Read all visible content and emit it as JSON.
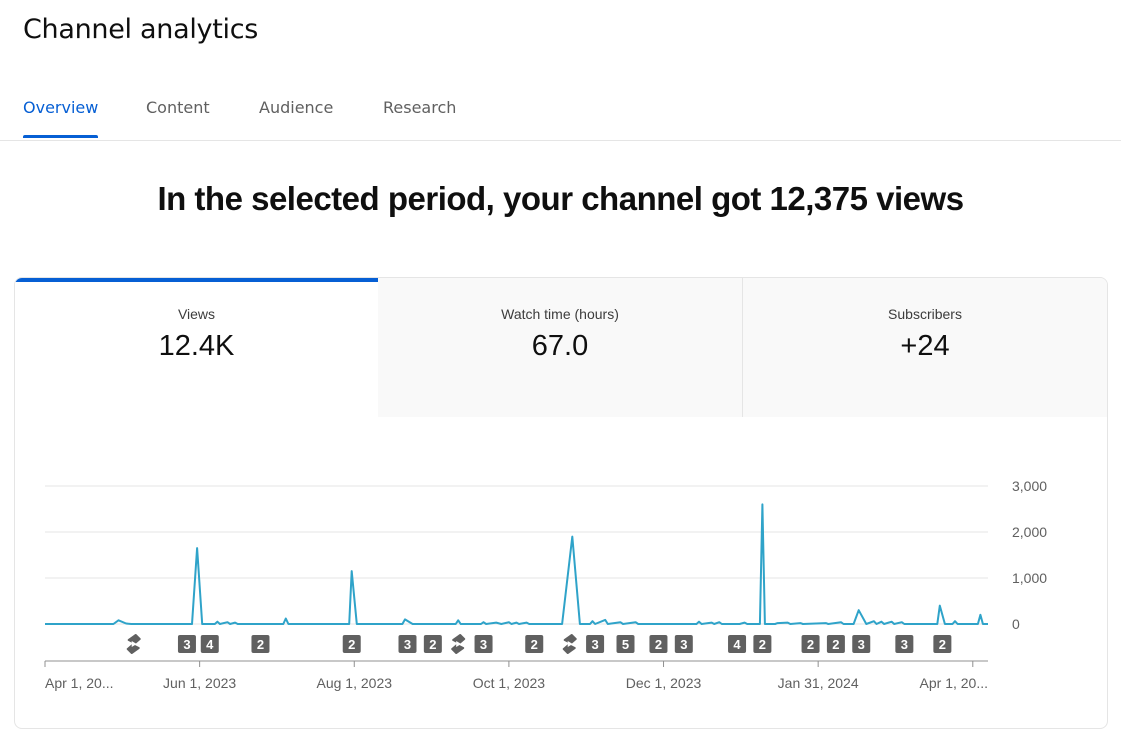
{
  "page": {
    "title": "Channel analytics"
  },
  "tabs": [
    {
      "label": "Overview",
      "active": true
    },
    {
      "label": "Content",
      "active": false
    },
    {
      "label": "Audience",
      "active": false
    },
    {
      "label": "Research",
      "active": false
    }
  ],
  "headline": "In the selected period, your channel got 12,375 views",
  "metrics": [
    {
      "label": "Views",
      "value": "12.4K",
      "active": true
    },
    {
      "label": "Watch time (hours)",
      "value": "67.0",
      "active": false
    },
    {
      "label": "Subscribers",
      "value": "+24",
      "active": false
    }
  ],
  "colors": {
    "accent": "#065fd4",
    "line": "#2fa3c9",
    "marker": "#606060",
    "grid": "#e5e5e5"
  },
  "chart_data": {
    "type": "line",
    "title": "",
    "xlabel": "",
    "ylabel": "",
    "y_ticks": [
      "3,000",
      "2,000",
      "1,000",
      "0"
    ],
    "y_tick_values": [
      3000,
      2000,
      1000,
      0
    ],
    "ylim": [
      0,
      3000
    ],
    "x_range": [
      "2023-04-01",
      "2024-04-07"
    ],
    "x_ticks": [
      {
        "date": "2023-04-01",
        "label": "Apr 1, 20..."
      },
      {
        "date": "2023-06-01",
        "label": "Jun 1, 2023"
      },
      {
        "date": "2023-08-01",
        "label": "Aug 1, 2023"
      },
      {
        "date": "2023-10-01",
        "label": "Oct 1, 2023"
      },
      {
        "date": "2023-12-01",
        "label": "Dec 1, 2023"
      },
      {
        "date": "2024-01-31",
        "label": "Jan 31, 2024"
      },
      {
        "date": "2024-04-01",
        "label": "Apr 1, 20..."
      }
    ],
    "grid": true,
    "series": [
      {
        "points": [
          [
            "2023-04-01",
            0
          ],
          [
            "2023-04-28",
            0
          ],
          [
            "2023-04-30",
            80
          ],
          [
            "2023-05-03",
            10
          ],
          [
            "2023-05-05",
            0
          ],
          [
            "2023-05-29",
            0
          ],
          [
            "2023-05-31",
            1650
          ],
          [
            "2023-06-02",
            0
          ],
          [
            "2023-06-07",
            0
          ],
          [
            "2023-06-08",
            50
          ],
          [
            "2023-06-09",
            0
          ],
          [
            "2023-06-12",
            40
          ],
          [
            "2023-06-13",
            0
          ],
          [
            "2023-06-15",
            30
          ],
          [
            "2023-06-16",
            0
          ],
          [
            "2023-07-04",
            0
          ],
          [
            "2023-07-05",
            120
          ],
          [
            "2023-07-06",
            0
          ],
          [
            "2023-07-30",
            0
          ],
          [
            "2023-07-31",
            1150
          ],
          [
            "2023-08-02",
            0
          ],
          [
            "2023-08-20",
            0
          ],
          [
            "2023-08-21",
            100
          ],
          [
            "2023-08-24",
            0
          ],
          [
            "2023-09-10",
            0
          ],
          [
            "2023-09-11",
            80
          ],
          [
            "2023-09-12",
            0
          ],
          [
            "2023-09-20",
            0
          ],
          [
            "2023-09-21",
            40
          ],
          [
            "2023-09-22",
            0
          ],
          [
            "2023-09-26",
            30
          ],
          [
            "2023-09-28",
            0
          ],
          [
            "2023-10-01",
            40
          ],
          [
            "2023-10-02",
            0
          ],
          [
            "2023-10-04",
            30
          ],
          [
            "2023-10-05",
            0
          ],
          [
            "2023-10-08",
            30
          ],
          [
            "2023-10-09",
            0
          ],
          [
            "2023-10-22",
            0
          ],
          [
            "2023-10-26",
            1900
          ],
          [
            "2023-10-29",
            0
          ],
          [
            "2023-11-02",
            0
          ],
          [
            "2023-11-03",
            60
          ],
          [
            "2023-11-04",
            0
          ],
          [
            "2023-11-08",
            90
          ],
          [
            "2023-11-09",
            0
          ],
          [
            "2023-11-14",
            40
          ],
          [
            "2023-11-15",
            0
          ],
          [
            "2023-11-20",
            40
          ],
          [
            "2023-11-21",
            0
          ],
          [
            "2023-12-14",
            0
          ],
          [
            "2023-12-15",
            50
          ],
          [
            "2023-12-16",
            0
          ],
          [
            "2023-12-20",
            30
          ],
          [
            "2023-12-21",
            0
          ],
          [
            "2023-12-23",
            40
          ],
          [
            "2023-12-24",
            0
          ],
          [
            "2023-12-31",
            0
          ],
          [
            "2024-01-02",
            30
          ],
          [
            "2024-01-03",
            0
          ],
          [
            "2024-01-08",
            0
          ],
          [
            "2024-01-09",
            2600
          ],
          [
            "2024-01-10",
            0
          ],
          [
            "2024-01-14",
            0
          ],
          [
            "2024-01-15",
            20
          ],
          [
            "2024-01-19",
            30
          ],
          [
            "2024-01-20",
            0
          ],
          [
            "2024-01-24",
            20
          ],
          [
            "2024-01-25",
            0
          ],
          [
            "2024-02-03",
            20
          ],
          [
            "2024-02-04",
            0
          ],
          [
            "2024-02-09",
            40
          ],
          [
            "2024-02-10",
            0
          ],
          [
            "2024-02-14",
            0
          ],
          [
            "2024-02-16",
            300
          ],
          [
            "2024-02-19",
            0
          ],
          [
            "2024-02-22",
            60
          ],
          [
            "2024-02-23",
            0
          ],
          [
            "2024-02-25",
            50
          ],
          [
            "2024-02-26",
            0
          ],
          [
            "2024-02-29",
            50
          ],
          [
            "2024-03-01",
            0
          ],
          [
            "2024-03-04",
            40
          ],
          [
            "2024-03-05",
            0
          ],
          [
            "2024-03-18",
            0
          ],
          [
            "2024-03-19",
            400
          ],
          [
            "2024-03-21",
            0
          ],
          [
            "2024-03-24",
            0
          ],
          [
            "2024-03-25",
            60
          ],
          [
            "2024-03-26",
            0
          ],
          [
            "2024-04-03",
            0
          ],
          [
            "2024-04-04",
            200
          ],
          [
            "2024-04-05",
            0
          ],
          [
            "2024-04-07",
            0
          ]
        ]
      }
    ],
    "markers": [
      {
        "date": "2023-05-06",
        "type": "short"
      },
      {
        "date": "2023-05-27",
        "label": "3"
      },
      {
        "date": "2023-06-05",
        "label": "4"
      },
      {
        "date": "2023-06-25",
        "label": "2"
      },
      {
        "date": "2023-07-31",
        "label": "2"
      },
      {
        "date": "2023-08-22",
        "label": "3"
      },
      {
        "date": "2023-09-01",
        "label": "2"
      },
      {
        "date": "2023-09-11",
        "type": "short"
      },
      {
        "date": "2023-09-21",
        "label": "3"
      },
      {
        "date": "2023-10-11",
        "label": "2"
      },
      {
        "date": "2023-10-25",
        "type": "short"
      },
      {
        "date": "2023-11-04",
        "label": "3"
      },
      {
        "date": "2023-11-16",
        "label": "5"
      },
      {
        "date": "2023-11-29",
        "label": "2"
      },
      {
        "date": "2023-12-09",
        "label": "3"
      },
      {
        "date": "2023-12-30",
        "label": "4"
      },
      {
        "date": "2024-01-09",
        "label": "2"
      },
      {
        "date": "2024-01-28",
        "label": "2"
      },
      {
        "date": "2024-02-07",
        "label": "2"
      },
      {
        "date": "2024-02-17",
        "label": "3"
      },
      {
        "date": "2024-03-05",
        "label": "3"
      },
      {
        "date": "2024-03-20",
        "label": "2"
      }
    ]
  }
}
